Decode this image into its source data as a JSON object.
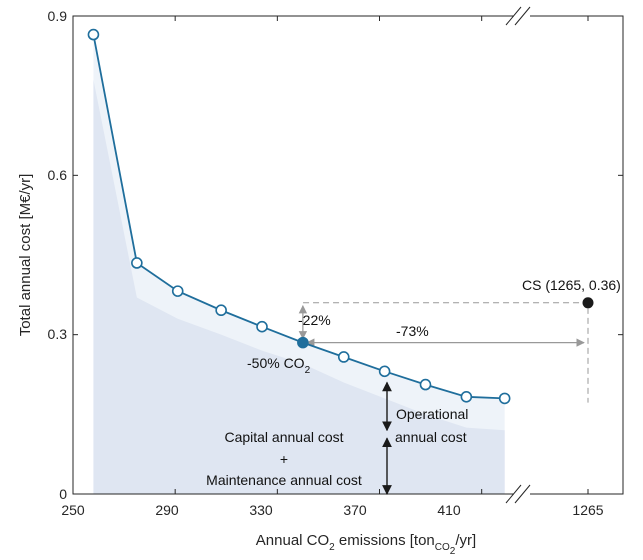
{
  "chart_data": {
    "type": "line",
    "x_ticks_main": [
      "250",
      "290",
      "330",
      "370",
      "410"
    ],
    "x_tick_break": "1265",
    "y_ticks": [
      "0",
      "0.3",
      "0.6",
      "0.9"
    ],
    "xlim_main": [
      250,
      425
    ],
    "ylim": [
      0,
      0.9
    ],
    "grid": false,
    "xlabel": {
      "pre": "Annual CO",
      "sub1": "2",
      "mid": " emissions [ton",
      "sub2": "CO",
      "sub3": "2",
      "post": "/yr]"
    },
    "ylabel": "Total annual cost [M€/yr]",
    "series": [
      {
        "x": [
          258,
          275,
          291,
          308,
          324,
          340,
          356,
          372,
          388,
          404,
          419
        ],
        "y": [
          0.865,
          0.435,
          0.382,
          0.346,
          0.315,
          0.285,
          0.258,
          0.231,
          0.206,
          0.183,
          0.18
        ],
        "color": "#1f6e9c"
      }
    ],
    "highlight": {
      "x": 340,
      "y": 0.285,
      "label_pre": "-50% CO",
      "label_sub": "2"
    },
    "cs_point": {
      "label": "CS (1265, 0.36)",
      "x": 1265,
      "y": 0.36
    },
    "capital_area": {
      "x": [
        258,
        275,
        291,
        308,
        324,
        340,
        356,
        372,
        388,
        404,
        419
      ],
      "y": [
        0.78,
        0.37,
        0.33,
        0.3,
        0.27,
        0.245,
        0.21,
        0.18,
        0.15,
        0.125,
        0.12
      ]
    },
    "total_area_end": {
      "x": 419,
      "y": 0.18
    },
    "fill_colors": {
      "operational": "#eef3f9",
      "capital": "#dfe6f2"
    },
    "annotations": {
      "pct_22": "-22%",
      "pct_73": "-73%",
      "operational": [
        "Operational",
        "annual cost"
      ],
      "capital": [
        "Capital annual cost",
        "+",
        "Maintenance annual cost"
      ]
    }
  }
}
